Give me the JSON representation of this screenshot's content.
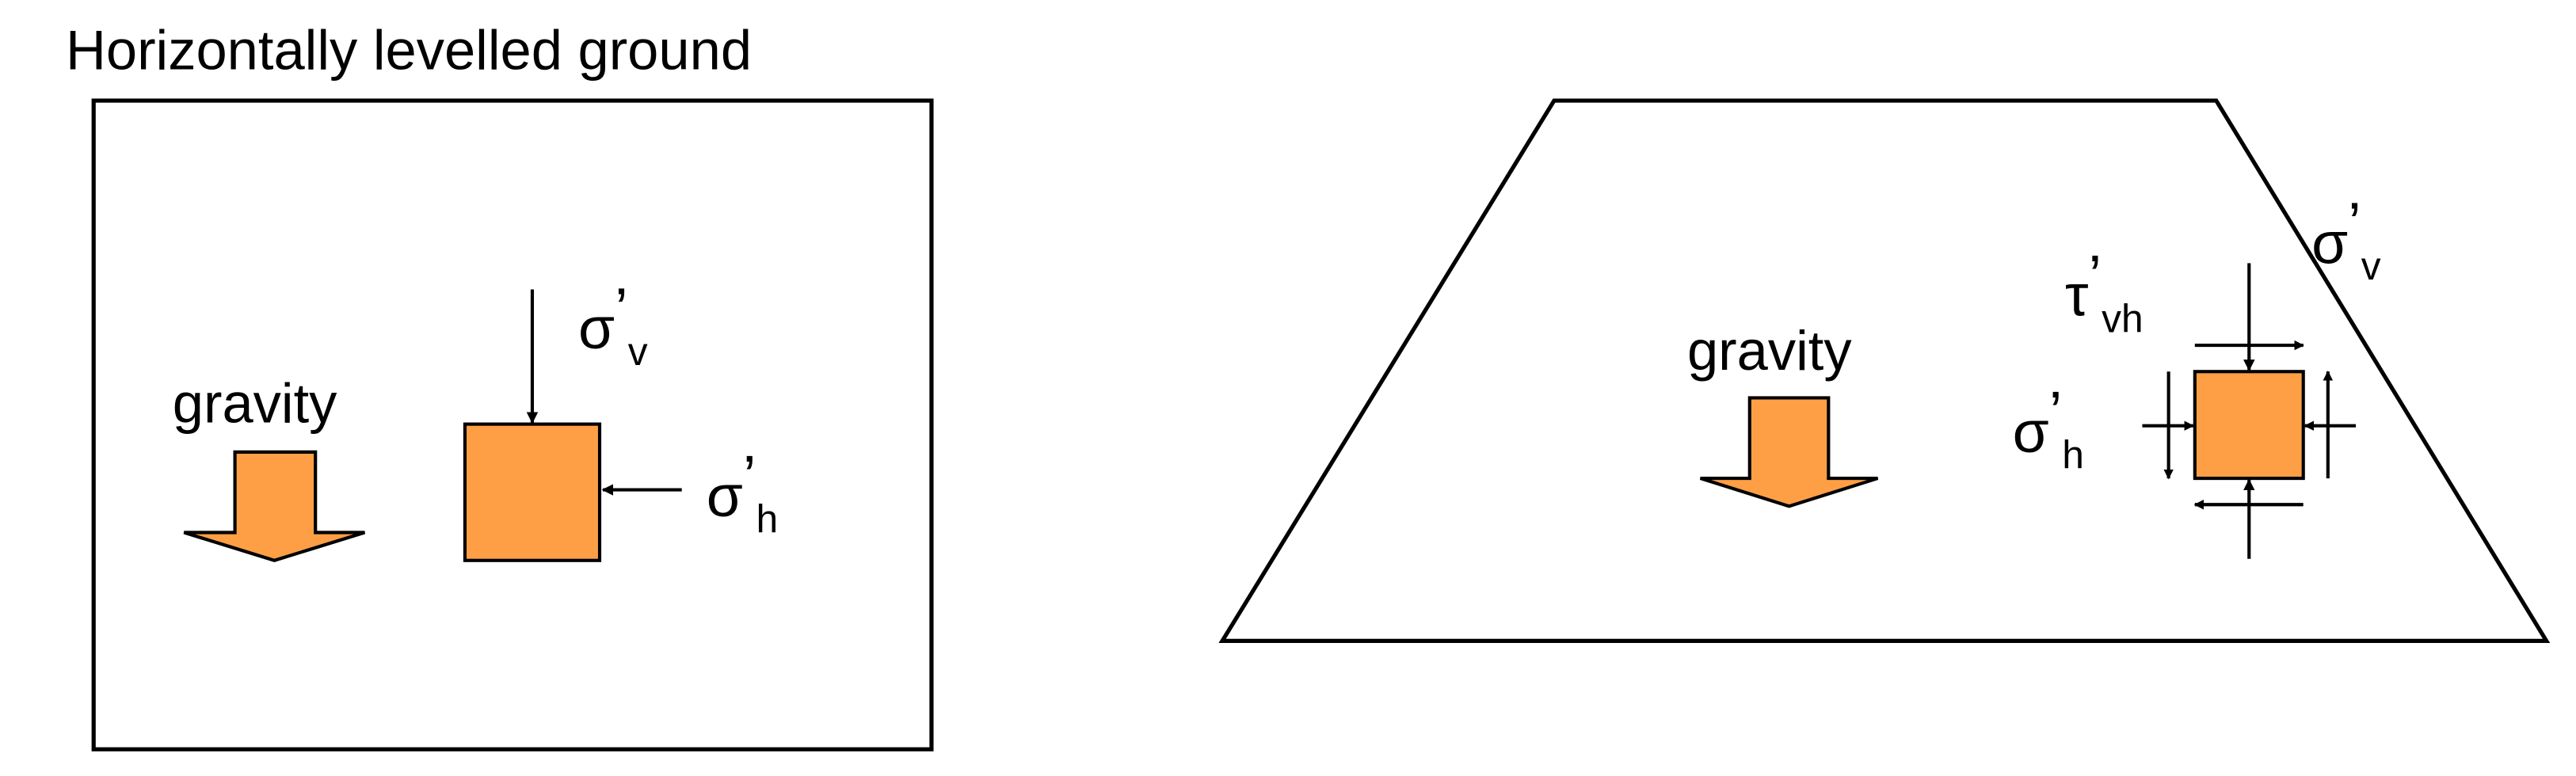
{
  "title": "Horizontally levelled ground",
  "colors": {
    "fill": "#FF9F45",
    "stroke": "#000000",
    "background": "#FFFFFF"
  },
  "panel_left": {
    "gravity_label": "gravity",
    "sigma_v": {
      "symbol": "σ",
      "prime": "’",
      "sub": "v"
    },
    "sigma_h": {
      "symbol": "σ",
      "prime": "’",
      "sub": "h"
    }
  },
  "panel_right": {
    "gravity_label": "gravity",
    "sigma_v": {
      "symbol": "σ",
      "prime": "’",
      "sub": "v"
    },
    "sigma_h": {
      "symbol": "σ",
      "prime": "’",
      "sub": "h"
    },
    "tau_vh": {
      "symbol": "τ",
      "prime": "’",
      "sub": "vh"
    }
  }
}
